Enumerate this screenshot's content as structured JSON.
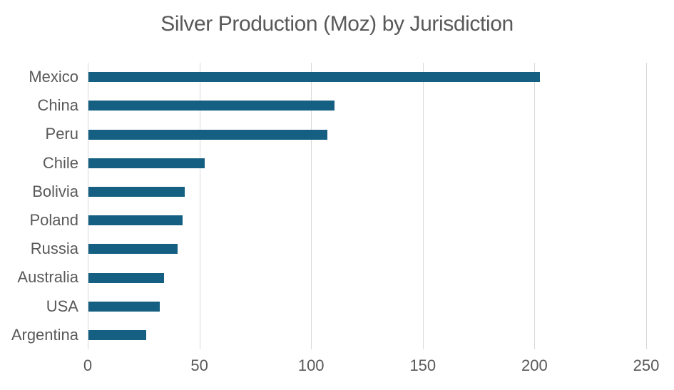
{
  "chart_data": {
    "type": "bar",
    "orientation": "horizontal",
    "title": "Silver Production (Moz) by Jurisdiction",
    "categories": [
      "Mexico",
      "China",
      "Peru",
      "Chile",
      "Bolivia",
      "Poland",
      "Russia",
      "Australia",
      "USA",
      "Argentina"
    ],
    "values": [
      202,
      110,
      107,
      52,
      43,
      42,
      40,
      34,
      32,
      26
    ],
    "xlabel": "",
    "ylabel": "",
    "xlim": [
      0,
      250
    ],
    "xticks": [
      0,
      50,
      100,
      150,
      200,
      250
    ],
    "grid": "vertical-only",
    "legend": "none",
    "colors": {
      "bar": "#156082",
      "text": "#595959",
      "gridline": "#d9d9d9",
      "background": "#ffffff"
    }
  }
}
